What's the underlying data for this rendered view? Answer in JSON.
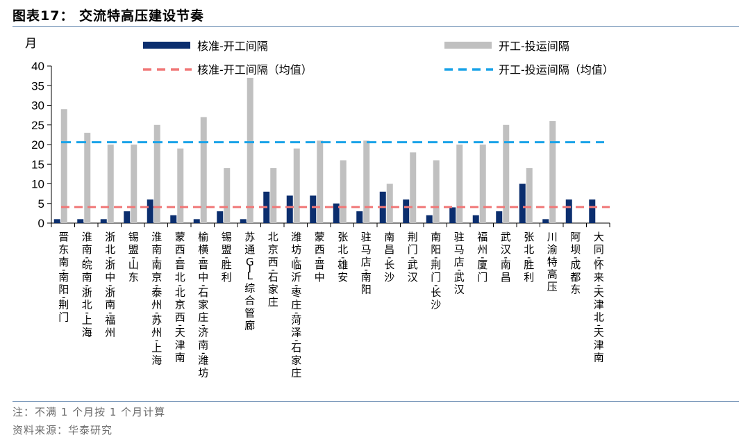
{
  "title": "图表17：  交流特高压建设节奏",
  "note": "注：不满 1 个月按 1 个月计算",
  "source": "资料来源：华泰研究",
  "chart_data": {
    "type": "bar",
    "ylabel": "月",
    "ylim": [
      0,
      40
    ],
    "yticks": [
      0,
      5,
      10,
      15,
      20,
      25,
      30,
      35,
      40
    ],
    "categories": [
      "晋东南-南阳-荆门",
      "淮南-皖南-浙北-上海",
      "浙北-浙中-浙南-福州",
      "锡盟-山东",
      "淮南-南京-泰州-苏州-上海",
      "蒙西-晋北-北京西-天津南",
      "榆横-晋中-石家庄-济南-潍坊",
      "锡盟-胜利",
      "苏通GIL综合管廊",
      "北京西-石家庄",
      "潍坊-临沂-枣庄-菏泽-石家庄",
      "蒙西-晋中",
      "张北-雄安",
      "驻马店-南阳",
      "南昌-长沙",
      "荆门-武汉",
      "南阳-荆门-长沙",
      "驻马店-武汉",
      "福州-厦门",
      "武汉-南昌",
      "张北-胜利",
      "川渝特高压",
      "阿坝-成都东",
      "大同-怀来-天津北-天津南"
    ],
    "series": [
      {
        "name": "核准-开工间隔",
        "color": "#0b2e6e",
        "values": [
          1,
          1,
          1,
          3,
          6,
          2,
          1,
          3,
          1,
          8,
          7,
          7,
          5,
          3,
          8,
          6,
          2,
          4,
          2,
          3,
          10,
          1,
          6,
          6
        ]
      },
      {
        "name": "开工-投运间隔",
        "color": "#c0c0c0",
        "values": [
          29,
          23,
          20,
          20,
          25,
          19,
          27,
          14,
          37,
          14,
          19,
          21,
          16,
          21,
          10,
          18,
          16,
          20,
          20,
          25,
          14,
          26,
          null,
          null
        ]
      }
    ],
    "averages": [
      {
        "name": "核准-开工间隔（均值）",
        "value": 4.1,
        "color": "#f07878",
        "style": "dashed"
      },
      {
        "name": "开工-投运间隔（均值）",
        "value": 20.6,
        "color": "#1aa3e8",
        "style": "dashed"
      }
    ],
    "legend": "top",
    "grid": false
  }
}
